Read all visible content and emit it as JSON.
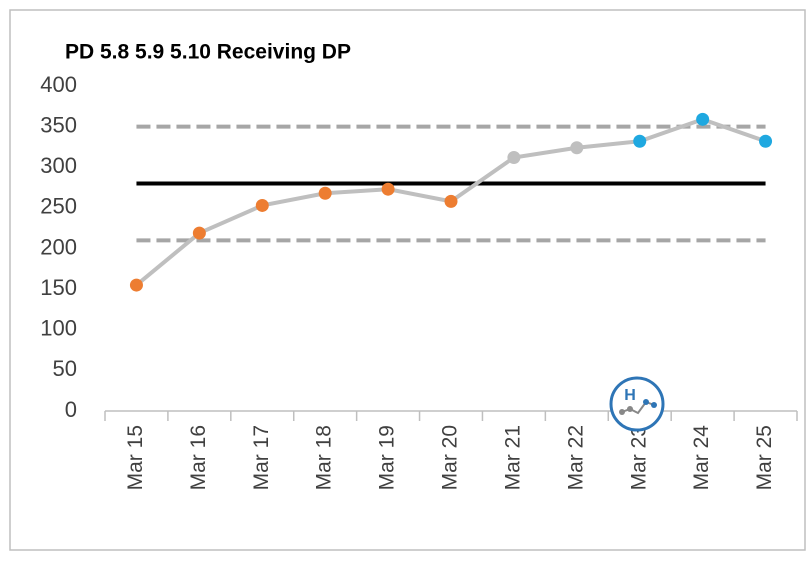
{
  "chart_data": {
    "type": "line",
    "title": "PD 5.8 5.9 5.10 Receiving DP",
    "categories": [
      "Mar 15",
      "Mar 16",
      "Mar 17",
      "Mar 18",
      "Mar 19",
      "Mar 20",
      "Mar 21",
      "Mar 22",
      "Mar 23",
      "Mar 24",
      "Mar 25"
    ],
    "values": [
      155,
      219,
      253,
      268,
      273,
      258,
      312,
      324,
      332,
      359,
      332
    ],
    "color": "#bfbfbf",
    "point_colors": [
      "#ed7d31",
      "#ed7d31",
      "#ed7d31",
      "#ed7d31",
      "#ed7d31",
      "#ed7d31",
      "#bfbfbf",
      "#bfbfbf",
      "#1fa8e0",
      "#1fa8e0",
      "#1fa8e0"
    ],
    "reference_lines": [
      {
        "value": 280,
        "color": "#000000",
        "style": "solid"
      },
      {
        "value": 350,
        "color": "#a6a6a6",
        "style": "dashed"
      },
      {
        "value": 210,
        "color": "#a6a6a6",
        "style": "dashed"
      }
    ],
    "ylim": [
      0,
      400
    ],
    "yticks": [
      0,
      50,
      100,
      150,
      200,
      250,
      300,
      350,
      400
    ],
    "grid": false
  }
}
